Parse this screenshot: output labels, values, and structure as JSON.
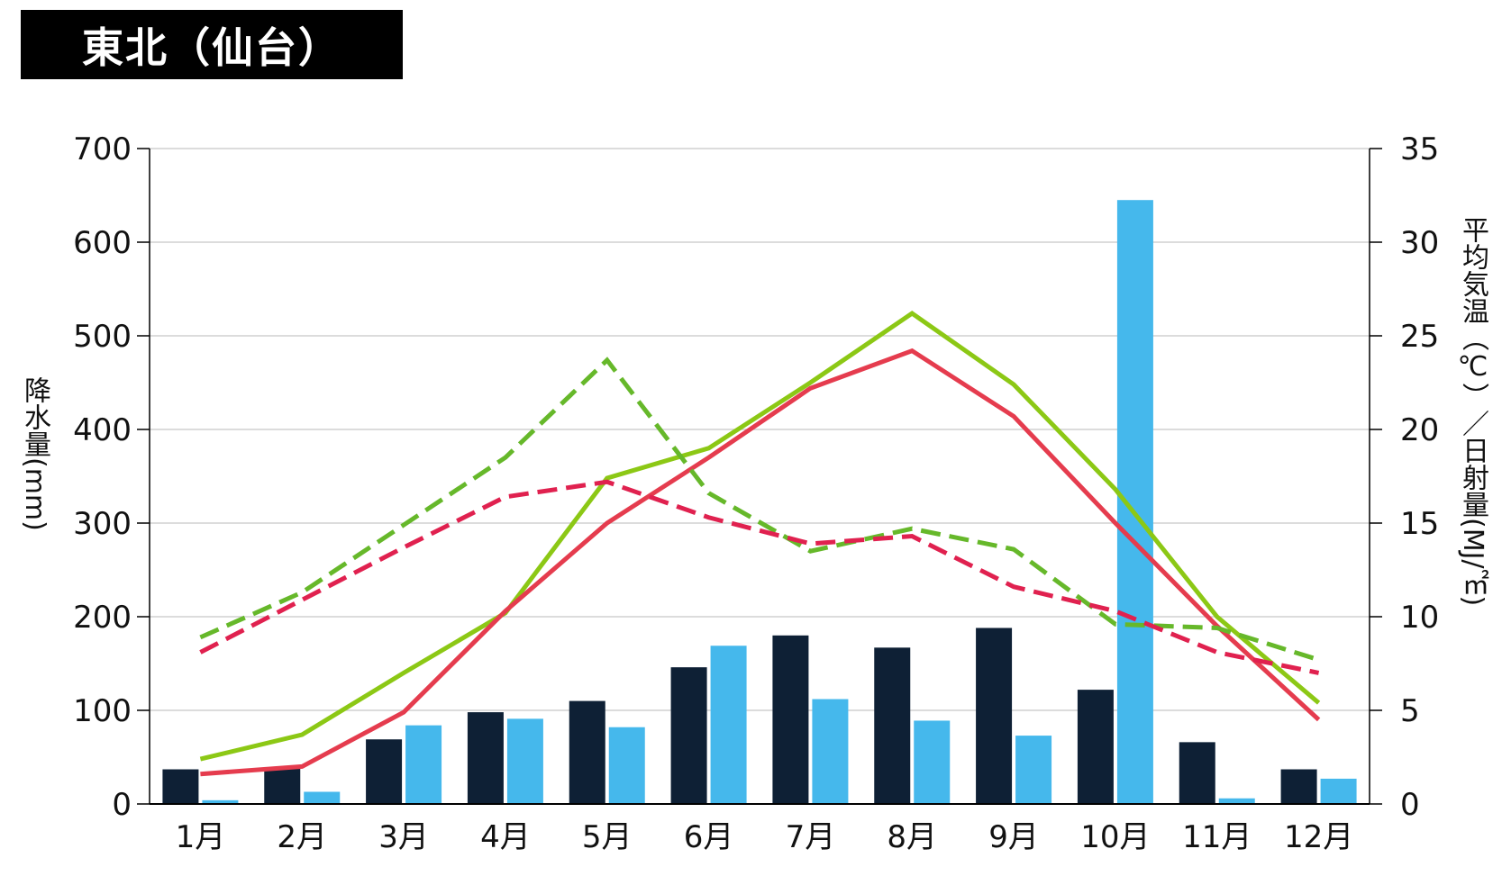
{
  "title": "東北（仙台）",
  "chart_data": {
    "type": "bar",
    "categories": [
      "1月",
      "2月",
      "3月",
      "4月",
      "5月",
      "6月",
      "7月",
      "8月",
      "9月",
      "10月",
      "11月",
      "12月"
    ],
    "ylabel": "降水量(mm)",
    "ylabel_right": "平均気温（℃）／日射量(MJ/㎡)",
    "ylim": [
      0,
      700
    ],
    "yticks": [
      0,
      100,
      200,
      300,
      400,
      500,
      600,
      700
    ],
    "ylim_right": [
      0,
      35
    ],
    "yticks_right": [
      0,
      5,
      10,
      15,
      20,
      25,
      30,
      35
    ],
    "grid": true,
    "bar_series": [
      {
        "values": [
          37,
          38,
          69,
          98,
          110,
          146,
          180,
          167,
          188,
          122,
          66,
          37
        ],
        "color": "#0e2035",
        "axis": "left"
      },
      {
        "values": [
          4,
          13,
          84,
          91,
          82,
          169,
          112,
          89,
          73,
          645,
          6,
          27
        ],
        "color": "#45b8ec",
        "axis": "left"
      }
    ],
    "line_series": [
      {
        "values": [
          2.4,
          3.7,
          7.0,
          10.2,
          17.4,
          19.0,
          22.5,
          26.2,
          22.4,
          16.8,
          10.0,
          5.4
        ],
        "color": "#8cc815",
        "dash": false,
        "axis": "right"
      },
      {
        "values": [
          1.6,
          2.0,
          4.9,
          10.3,
          15.0,
          18.5,
          22.2,
          24.2,
          20.7,
          15.0,
          9.5,
          4.5
        ],
        "color": "#e53c4e",
        "dash": false,
        "axis": "right"
      },
      {
        "values": [
          8.9,
          11.3,
          14.9,
          18.5,
          23.7,
          16.6,
          13.5,
          14.7,
          13.6,
          9.6,
          9.4,
          7.7
        ],
        "color": "#66b82a",
        "dash": true,
        "axis": "right"
      },
      {
        "values": [
          8.1,
          10.9,
          13.7,
          16.4,
          17.2,
          15.3,
          13.9,
          14.3,
          11.6,
          10.3,
          8.1,
          7.0
        ],
        "color": "#e0214f",
        "dash": true,
        "axis": "right"
      }
    ]
  }
}
